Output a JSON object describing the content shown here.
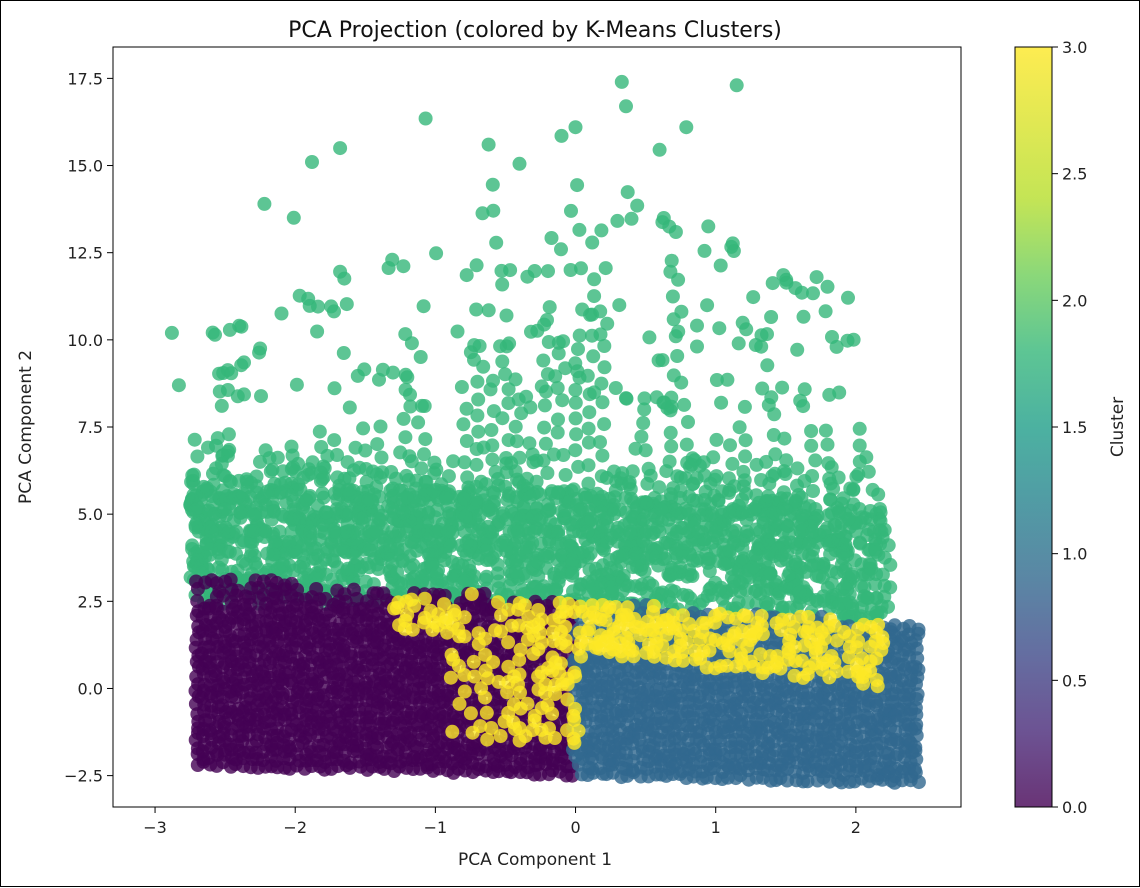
{
  "chart_data": {
    "type": "scatter",
    "title": "PCA Projection (colored by K-Means Clusters)",
    "xlabel": "PCA Component 1",
    "ylabel": "PCA Component 2",
    "xlim": [
      -3.3,
      2.75
    ],
    "ylim": [
      -3.4,
      18.4
    ],
    "xticks": [
      -3,
      -2,
      -1,
      0,
      1,
      2
    ],
    "xtick_labels": [
      "−3",
      "−2",
      "−1",
      "0",
      "1",
      "2"
    ],
    "yticks": [
      -2.5,
      0.0,
      2.5,
      5.0,
      7.5,
      10.0,
      12.5,
      15.0,
      17.5
    ],
    "ytick_labels": [
      "−2.5",
      "0.0",
      "2.5",
      "5.0",
      "7.5",
      "10.0",
      "12.5",
      "15.0",
      "17.5"
    ],
    "colorbar": {
      "label": "Cluster",
      "range": [
        0.0,
        3.0
      ],
      "ticks": [
        0.0,
        0.5,
        1.0,
        1.5,
        2.0,
        2.5,
        3.0
      ],
      "tick_labels": [
        "0.0",
        "0.5",
        "1.0",
        "1.5",
        "2.0",
        "2.5",
        "3.0"
      ],
      "colormap": "viridis",
      "alpha": 0.8
    },
    "clusters": [
      {
        "cluster": 0,
        "color": "#440154",
        "x_range": [
          -2.7,
          0.0
        ],
        "y_range": [
          -2.4,
          2.9
        ],
        "approx_points": 1800
      },
      {
        "cluster": 1,
        "color": "#31688e",
        "x_range": [
          -0.05,
          2.45
        ],
        "y_range": [
          -2.2,
          2.4
        ],
        "approx_points": 1500
      },
      {
        "cluster": 2,
        "color": "#35b779",
        "x_range": [
          -2.9,
          2.3
        ],
        "y_range": [
          1.5,
          17.4
        ],
        "approx_points": 1900
      },
      {
        "cluster": 3,
        "color": "#fde725",
        "x_range": [
          -1.3,
          2.2
        ],
        "y_range": [
          -1.5,
          3.1
        ],
        "approx_points": 500
      }
    ],
    "outliers": [
      [
        0.33,
        17.4
      ],
      [
        1.15,
        17.3
      ],
      [
        0.36,
        16.7
      ],
      [
        -1.07,
        16.35
      ],
      [
        0.79,
        16.1
      ],
      [
        0.0,
        16.1
      ],
      [
        -0.62,
        15.6
      ],
      [
        -1.68,
        15.5
      ],
      [
        0.6,
        15.45
      ],
      [
        -0.4,
        15.05
      ],
      [
        -1.88,
        15.1
      ],
      [
        -0.1,
        15.85
      ],
      [
        -2.01,
        13.5
      ],
      [
        -2.22,
        13.9
      ],
      [
        -2.88,
        10.2
      ],
      [
        -2.83,
        8.7
      ],
      [
        1.72,
        11.8
      ],
      [
        0.92,
        12.55
      ],
      [
        -0.59,
        14.45
      ],
      [
        0.44,
        13.85
      ]
    ]
  }
}
